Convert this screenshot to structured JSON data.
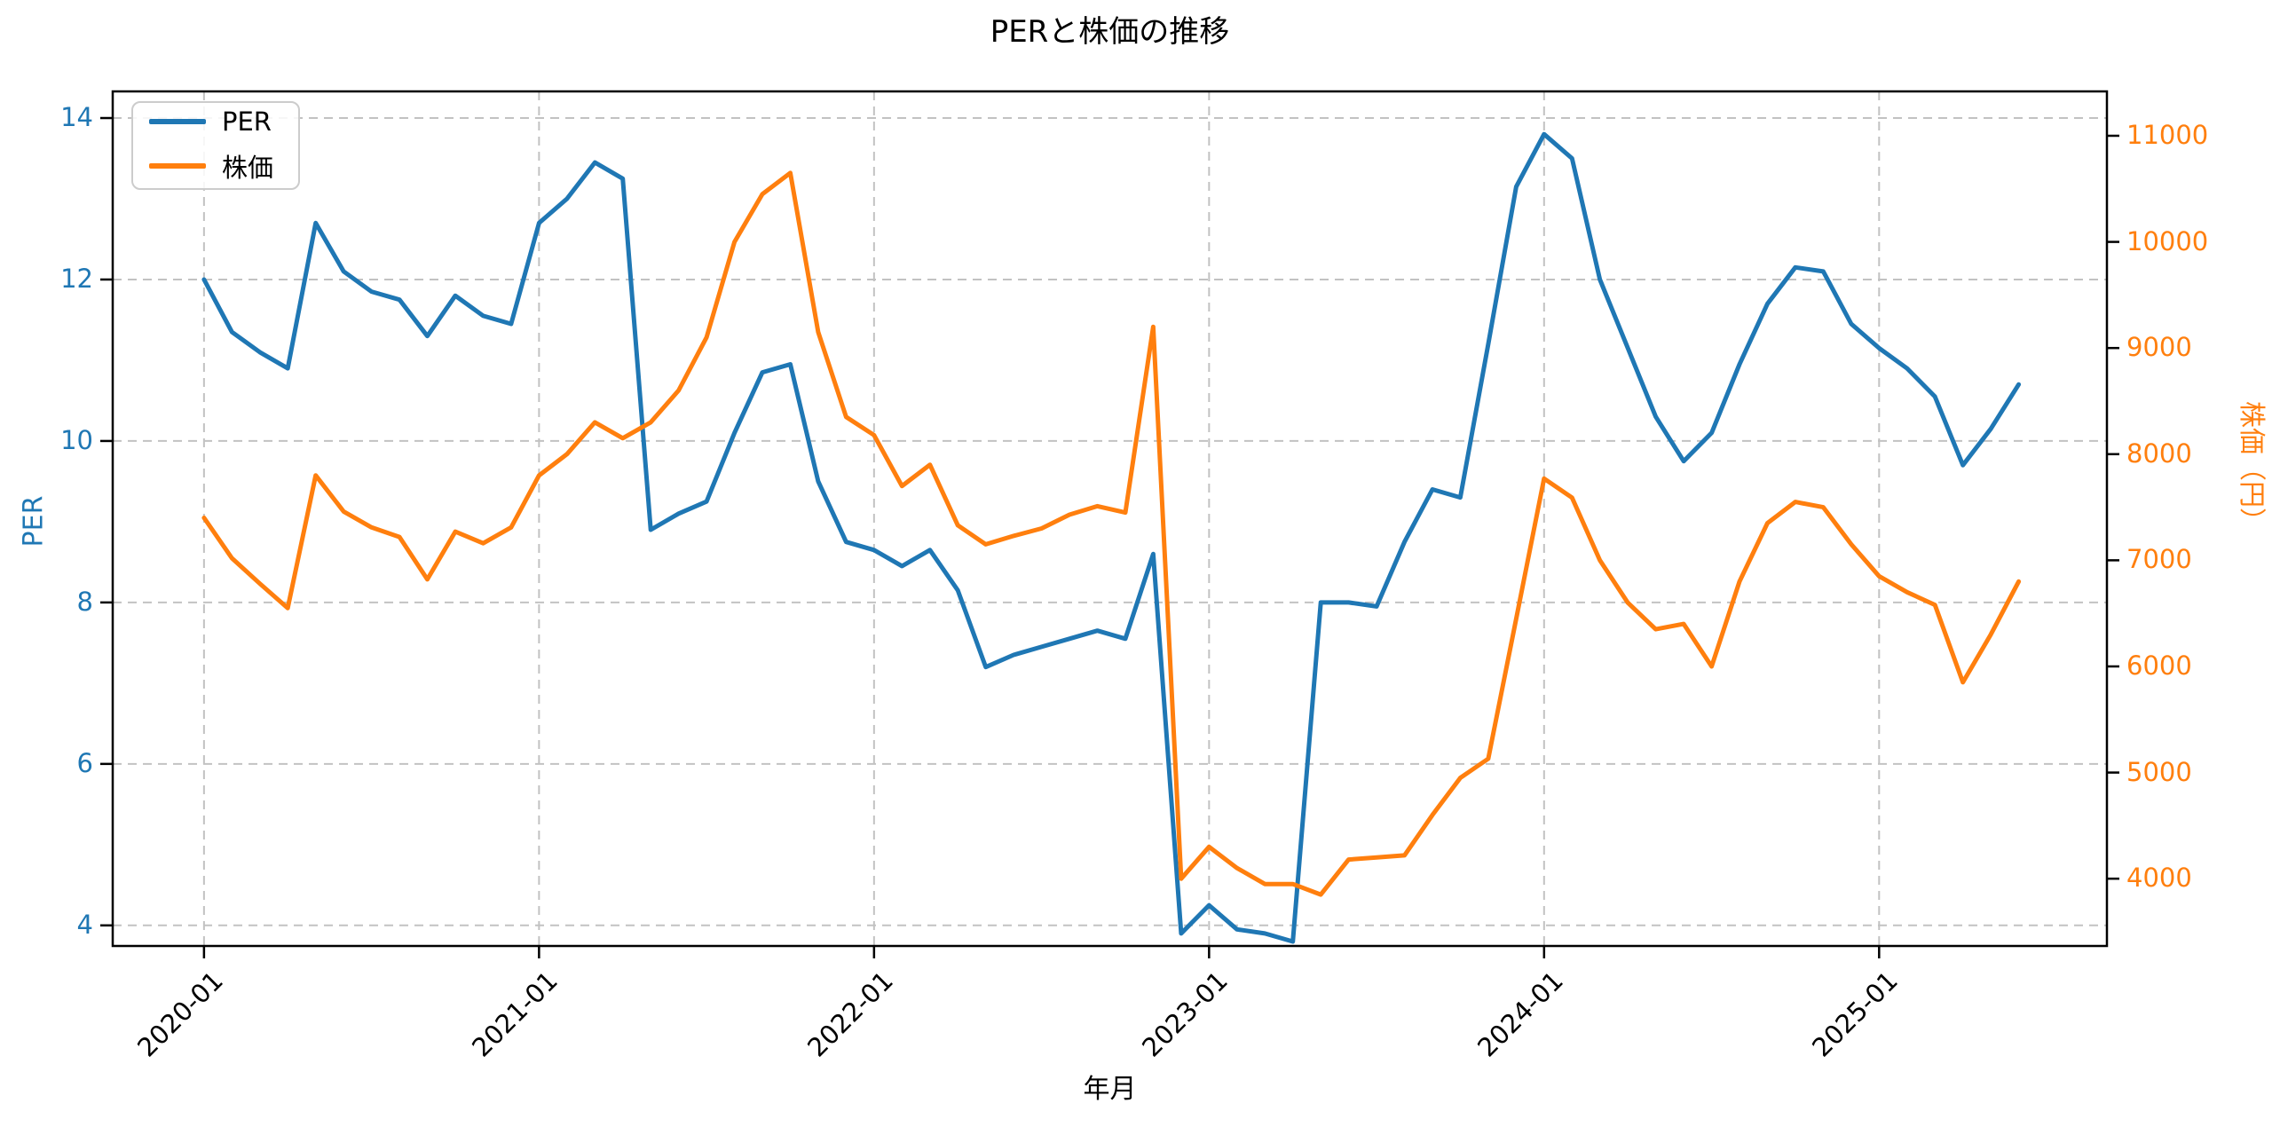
{
  "title": "PERと株価の推移",
  "legend": {
    "position": "upper left",
    "items": [
      {
        "label": "PER",
        "color": "#1f77b4"
      },
      {
        "label": "株価",
        "color": "#ff7f0e"
      }
    ]
  },
  "axes": {
    "x": {
      "label": "年月",
      "tick_labels": [
        "2020-01",
        "2021-01",
        "2022-01",
        "2023-01",
        "2024-01",
        "2025-01"
      ],
      "tick_months": [
        0,
        12,
        24,
        36,
        48,
        60
      ]
    },
    "y_left": {
      "label": "PER",
      "color": "#1f77b4",
      "ticks": [
        4,
        6,
        8,
        10,
        12,
        14
      ],
      "range": [
        3.745,
        14.33
      ]
    },
    "y_right": {
      "label": "株価（円）",
      "color": "#ff7f0e",
      "ticks": [
        4000,
        5000,
        6000,
        7000,
        8000,
        9000,
        10000,
        11000
      ],
      "range": [
        3366,
        11418
      ]
    }
  },
  "chart_data": {
    "type": "line",
    "grid": true,
    "x_range_months": [
      -3.27,
      68.16
    ],
    "months": [
      "2020-01",
      "2020-02",
      "2020-03",
      "2020-04",
      "2020-05",
      "2020-06",
      "2020-07",
      "2020-08",
      "2020-09",
      "2020-10",
      "2020-11",
      "2020-12",
      "2021-01",
      "2021-02",
      "2021-03",
      "2021-04",
      "2021-05",
      "2021-06",
      "2021-07",
      "2021-08",
      "2021-09",
      "2021-10",
      "2021-11",
      "2021-12",
      "2022-01",
      "2022-02",
      "2022-03",
      "2022-04",
      "2022-05",
      "2022-06",
      "2022-07",
      "2022-08",
      "2022-09",
      "2022-10",
      "2022-11",
      "2022-12",
      "2023-01",
      "2023-02",
      "2023-03",
      "2023-04",
      "2023-05",
      "2023-06",
      "2023-07",
      "2023-08",
      "2023-09",
      "2023-10",
      "2023-11",
      "2023-12",
      "2024-01",
      "2024-02",
      "2024-03",
      "2024-04",
      "2024-05",
      "2024-06",
      "2024-07",
      "2024-08",
      "2024-09",
      "2024-10",
      "2024-11",
      "2024-12",
      "2025-01",
      "2025-02",
      "2025-03",
      "2025-04",
      "2025-05",
      "2025-06"
    ],
    "series": [
      {
        "name": "PER",
        "axis": "left",
        "color": "#1f77b4",
        "values": [
          12.0,
          11.35,
          11.1,
          10.9,
          12.7,
          12.1,
          11.85,
          11.75,
          11.3,
          11.8,
          11.55,
          11.45,
          12.7,
          13.0,
          13.45,
          13.25,
          8.9,
          9.1,
          9.25,
          10.1,
          10.85,
          10.95,
          9.5,
          8.75,
          8.65,
          8.45,
          8.65,
          8.15,
          7.2,
          7.35,
          7.45,
          7.55,
          7.65,
          7.55,
          8.6,
          3.9,
          4.25,
          3.95,
          3.9,
          3.8,
          8.0,
          8.0,
          7.95,
          8.75,
          9.4,
          9.3,
          11.2,
          13.15,
          13.8,
          13.5,
          12.0,
          11.15,
          10.3,
          9.75,
          10.1,
          10.95,
          11.7,
          12.15,
          12.1,
          11.45,
          11.15,
          10.9,
          10.55,
          9.7,
          10.15,
          10.7
        ]
      },
      {
        "name": "株価",
        "axis": "right",
        "color": "#ff7f0e",
        "values": [
          7400,
          7020,
          6780,
          6550,
          7800,
          7460,
          7310,
          7220,
          6820,
          7270,
          7160,
          7310,
          7800,
          8000,
          8300,
          8150,
          8300,
          8600,
          9100,
          10000,
          10450,
          10650,
          9150,
          8350,
          8180,
          7700,
          7900,
          7330,
          7150,
          7230,
          7300,
          7430,
          7510,
          7450,
          9200,
          4000,
          4300,
          4100,
          3950,
          3950,
          3850,
          4180,
          4200,
          4220,
          4600,
          4950,
          5130,
          6450,
          7770,
          7590,
          7000,
          6600,
          6350,
          6400,
          6000,
          6800,
          7350,
          7550,
          7500,
          7150,
          6850,
          6700,
          6580,
          5850,
          6300,
          6800
        ]
      }
    ]
  }
}
